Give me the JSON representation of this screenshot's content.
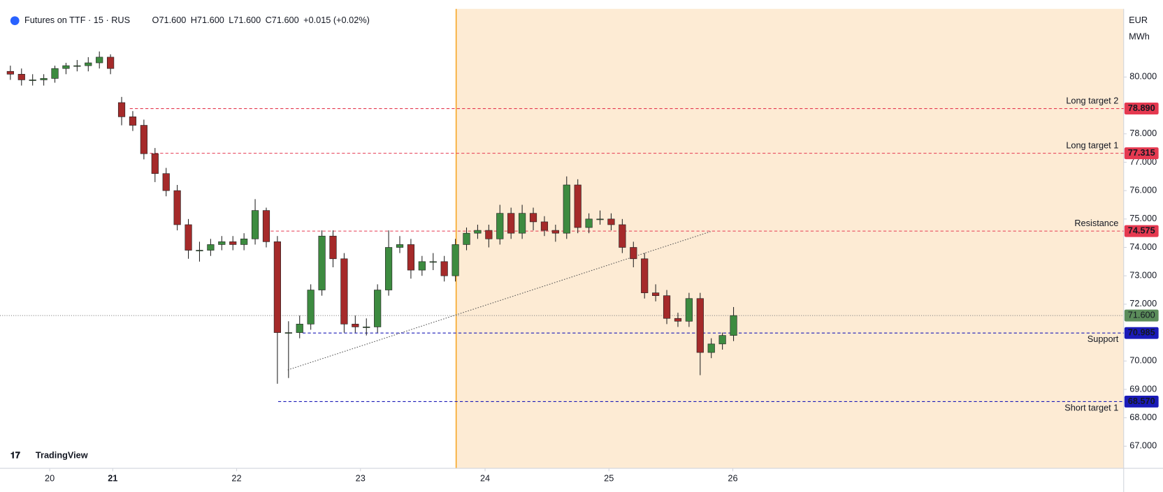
{
  "header": {
    "symbol": "Futures on TTF · 15 · RUS",
    "ohlc": [
      "O71.600",
      "H71.600",
      "L71.600",
      "C71.600"
    ],
    "change": "+0.015 (+0.02%)"
  },
  "logo": "TradingView",
  "chart_data": {
    "type": "candlestick",
    "price_unit": [
      "EUR",
      "MWh"
    ],
    "up_color": "#3d8b40",
    "down_color": "#a52a2a",
    "xlim": [
      0,
      151
    ],
    "ylim": [
      66.22,
      82.4
    ],
    "xticks": [
      {
        "value": 6.2,
        "label": "20"
      },
      {
        "value": 14.7,
        "label": "21"
      },
      {
        "value": 31.4,
        "label": "22"
      },
      {
        "value": 48.1,
        "label": "23"
      },
      {
        "value": 64.9,
        "label": "24"
      },
      {
        "value": 81.6,
        "label": "25"
      },
      {
        "value": 98.3,
        "label": "26"
      }
    ],
    "yticks": [
      {
        "value": 80,
        "label": "80.000"
      },
      {
        "value": 78,
        "label": "78.000"
      },
      {
        "value": 77,
        "label": "77.000"
      },
      {
        "value": 76,
        "label": "76.000"
      },
      {
        "value": 75,
        "label": "75.000"
      },
      {
        "value": 74,
        "label": "74.000"
      },
      {
        "value": 73,
        "label": "73.000"
      },
      {
        "value": 72,
        "label": "72.000"
      },
      {
        "value": 70,
        "label": "70.000"
      },
      {
        "value": 69,
        "label": "69.000"
      },
      {
        "value": 68,
        "label": "68.000"
      },
      {
        "value": 67,
        "label": "67.000"
      }
    ],
    "x": [
      0.9,
      2.4,
      3.9,
      5.4,
      6.9,
      8.4,
      9.9,
      11.4,
      12.9,
      14.4,
      15.9,
      17.4,
      18.9,
      20.4,
      21.9,
      23.4,
      24.9,
      26.4,
      27.9,
      29.4,
      30.9,
      32.4,
      33.9,
      35.4,
      36.9,
      38.4,
      39.9,
      41.4,
      42.9,
      44.4,
      45.9,
      47.4,
      48.9,
      50.4,
      51.9,
      53.4,
      54.9,
      56.4,
      57.9,
      59.4,
      60.9,
      62.4,
      63.9,
      65.4,
      66.9,
      68.4,
      69.9,
      71.4,
      72.9,
      74.4,
      75.9,
      77.4,
      78.9,
      80.4,
      81.9,
      83.4,
      84.9,
      86.4,
      87.9,
      89.4,
      90.9,
      92.4,
      93.9,
      95.4,
      96.9,
      98.4
    ],
    "open": [
      80.2,
      80.1,
      79.9,
      79.9,
      79.95,
      80.3,
      80.4,
      80.4,
      80.5,
      80.7,
      79.1,
      78.6,
      78.3,
      77.3,
      76.6,
      76.0,
      74.8,
      73.9,
      73.9,
      74.1,
      74.2,
      74.1,
      74.3,
      75.3,
      74.2,
      71.0,
      71.0,
      71.3,
      72.5,
      74.4,
      73.6,
      71.3,
      71.2,
      71.2,
      72.5,
      74.0,
      74.1,
      73.2,
      73.5,
      73.5,
      73.0,
      74.1,
      74.5,
      74.6,
      74.3,
      75.2,
      74.5,
      75.2,
      74.9,
      74.6,
      74.5,
      76.2,
      74.7,
      75.0,
      75.0,
      74.8,
      74.0,
      73.6,
      72.4,
      72.3,
      71.5,
      71.4,
      72.2,
      70.3,
      70.6,
      70.9
    ],
    "high": [
      80.4,
      80.3,
      80.1,
      80.1,
      80.4,
      80.5,
      80.6,
      80.7,
      80.9,
      80.8,
      79.3,
      78.8,
      78.5,
      77.5,
      76.8,
      76.2,
      75.0,
      74.2,
      74.3,
      74.4,
      74.4,
      74.5,
      75.7,
      75.4,
      74.4,
      71.4,
      71.6,
      72.7,
      74.6,
      74.6,
      73.8,
      71.6,
      71.5,
      72.7,
      74.6,
      74.4,
      74.3,
      73.7,
      73.8,
      73.7,
      74.3,
      74.7,
      74.8,
      74.8,
      75.5,
      75.4,
      75.5,
      75.4,
      75.1,
      74.8,
      76.5,
      76.4,
      75.2,
      75.3,
      75.2,
      75.0,
      74.2,
      73.8,
      72.7,
      72.5,
      71.7,
      72.4,
      72.4,
      70.8,
      71.0,
      71.9
    ],
    "low": [
      79.9,
      79.7,
      79.7,
      79.7,
      79.8,
      80.1,
      80.2,
      80.2,
      80.3,
      80.1,
      78.3,
      78.1,
      77.1,
      76.3,
      75.8,
      74.6,
      73.6,
      73.5,
      73.7,
      73.9,
      73.9,
      73.9,
      74.1,
      74.0,
      69.2,
      69.4,
      70.8,
      71.1,
      72.3,
      73.3,
      71.0,
      71.0,
      70.9,
      71.0,
      72.3,
      73.8,
      72.9,
      73.0,
      73.2,
      72.8,
      72.8,
      73.9,
      74.3,
      74.0,
      74.1,
      74.3,
      74.3,
      74.6,
      74.4,
      74.2,
      74.3,
      74.5,
      74.5,
      74.8,
      74.6,
      73.8,
      73.3,
      72.2,
      72.1,
      71.3,
      71.2,
      71.2,
      69.5,
      70.1,
      70.4,
      70.7
    ],
    "close": [
      80.1,
      79.9,
      79.9,
      79.95,
      80.3,
      80.4,
      80.4,
      80.5,
      80.7,
      80.3,
      78.6,
      78.3,
      77.3,
      76.6,
      76.0,
      74.8,
      73.9,
      73.9,
      74.1,
      74.2,
      74.1,
      74.3,
      75.3,
      74.2,
      71.0,
      71.0,
      71.3,
      72.5,
      74.4,
      73.6,
      71.3,
      71.2,
      71.2,
      72.5,
      74.0,
      74.1,
      73.2,
      73.5,
      73.5,
      73.0,
      74.1,
      74.5,
      74.6,
      74.3,
      75.2,
      74.5,
      75.2,
      74.9,
      74.6,
      74.5,
      76.2,
      74.7,
      75.0,
      75.0,
      74.8,
      74.0,
      73.6,
      72.4,
      72.3,
      71.5,
      71.4,
      72.2,
      70.3,
      70.6,
      70.9,
      71.6
    ],
    "last_price": {
      "value": 71.6,
      "label": "71.600",
      "color": "#5b8c5a"
    },
    "levels": [
      {
        "price": 78.89,
        "label": "78.890",
        "text": "Long target 2",
        "color": "#e53950",
        "start_x": 17.0
      },
      {
        "price": 77.315,
        "label": "77.315",
        "text": "Long target 1",
        "color": "#e53950",
        "start_x": 19.0
      },
      {
        "price": 74.575,
        "label": "74.575",
        "text": "Resistance",
        "color": "#e53950",
        "start_x": 36.0
      },
      {
        "price": 70.985,
        "label": "70.985",
        "text": "Support",
        "color": "#1a1ab8",
        "start_x": 40.3
      },
      {
        "price": 68.57,
        "label": "68.570",
        "text": "Short target 1",
        "color": "#1a1ab8",
        "start_x": 37.0
      }
    ]
  }
}
